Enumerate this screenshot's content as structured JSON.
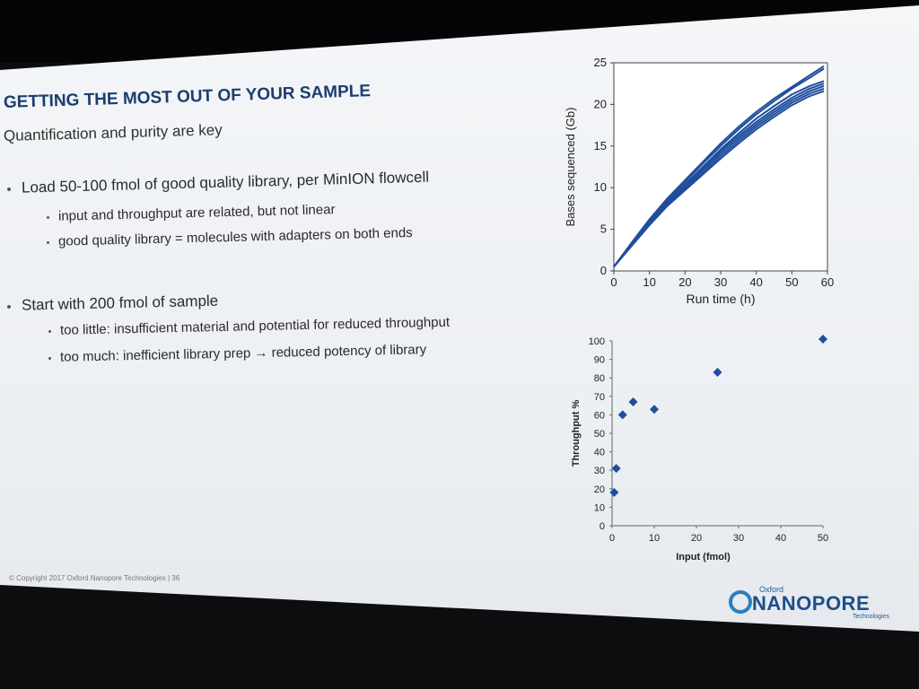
{
  "slide": {
    "title": "GETTING THE MOST OUT OF YOUR SAMPLE",
    "subtitle": "Quantification and purity are key",
    "bullets": [
      {
        "text": "Load 50-100 fmol of good quality library, per MinION flowcell",
        "subs": [
          "input and throughput are related, but not linear",
          "good quality library = molecules with adapters on both ends"
        ]
      },
      {
        "text": "Start with 200 fmol of sample",
        "subs": [
          "too little: insufficient material and potential for reduced throughput",
          "too much: inefficient library prep → reduced potency of library"
        ]
      }
    ],
    "footer": "© Copyright 2017 Oxford Nanopore Technologies  |  36",
    "logo": {
      "top": "Oxford",
      "main": "NANOPORE",
      "bottom": "Technologies"
    }
  },
  "colors": {
    "series": "#1f4e9c",
    "title": "#1c3e6e",
    "logo": "#1c4f8a"
  },
  "chart_data": [
    {
      "type": "line",
      "title": "",
      "xlabel": "Run time (h)",
      "ylabel": "Bases sequenced (Gb)",
      "xlim": [
        0,
        60
      ],
      "ylim": [
        0,
        25
      ],
      "xticks": [
        0,
        10,
        20,
        30,
        40,
        50,
        60
      ],
      "yticks": [
        0,
        5,
        10,
        15,
        20,
        25
      ],
      "x": [
        0,
        5,
        10,
        15,
        20,
        25,
        30,
        35,
        40,
        45,
        50,
        55,
        59
      ],
      "series": [
        {
          "values": [
            0.5,
            3.4,
            6.2,
            8.7,
            10.9,
            13.1,
            15.3,
            17.3,
            19.1,
            20.7,
            22.1,
            23.5,
            24.6
          ]
        },
        {
          "values": [
            0.5,
            3.3,
            6.0,
            8.5,
            10.7,
            12.9,
            15.0,
            17.0,
            18.8,
            20.4,
            21.9,
            23.2,
            24.3
          ]
        },
        {
          "values": [
            0.5,
            3.3,
            5.9,
            8.3,
            10.4,
            12.5,
            14.6,
            16.5,
            18.3,
            19.8,
            21.2,
            22.2,
            22.8
          ]
        },
        {
          "values": [
            0.5,
            3.2,
            5.8,
            8.2,
            10.2,
            12.3,
            14.4,
            16.2,
            17.9,
            19.4,
            20.8,
            21.9,
            22.5
          ]
        },
        {
          "values": [
            0.5,
            3.2,
            5.7,
            8.1,
            10.1,
            12.1,
            14.1,
            15.9,
            17.6,
            19.1,
            20.5,
            21.6,
            22.2
          ]
        },
        {
          "values": [
            0.5,
            3.1,
            5.6,
            7.9,
            9.9,
            11.8,
            13.8,
            15.6,
            17.3,
            18.8,
            20.2,
            21.3,
            21.9
          ]
        },
        {
          "values": [
            0.5,
            3.0,
            5.5,
            7.8,
            9.7,
            11.6,
            13.5,
            15.3,
            17.0,
            18.5,
            19.9,
            21.0,
            21.6
          ]
        }
      ]
    },
    {
      "type": "scatter",
      "title": "",
      "xlabel": "Input (fmol)",
      "ylabel": "Throughput %",
      "xlim": [
        0,
        50
      ],
      "ylim": [
        0,
        100
      ],
      "xticks": [
        0,
        10,
        20,
        30,
        40,
        50
      ],
      "yticks": [
        0,
        10,
        20,
        30,
        40,
        50,
        60,
        70,
        80,
        90,
        100
      ],
      "points": [
        {
          "x": 0.5,
          "y": 18
        },
        {
          "x": 1,
          "y": 31
        },
        {
          "x": 2.5,
          "y": 60
        },
        {
          "x": 5,
          "y": 67
        },
        {
          "x": 10,
          "y": 63
        },
        {
          "x": 25,
          "y": 83
        },
        {
          "x": 50,
          "y": 101
        }
      ],
      "marker": "diamond"
    }
  ]
}
